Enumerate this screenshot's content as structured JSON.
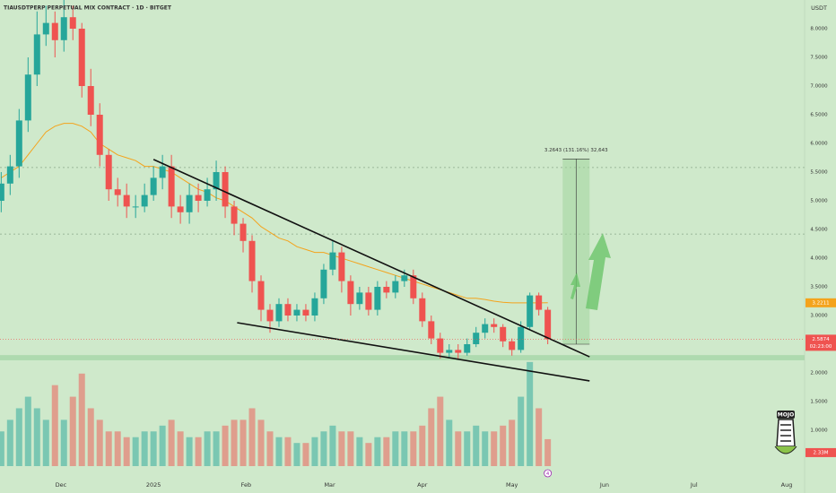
{
  "chart_data": {
    "type": "candlestick",
    "title": "TIAUSDTPERP PERPETUAL MIX CONTRACT · 1D · BITGET",
    "currency": "USDT",
    "x": [
      -20,
      -17,
      -14,
      -11,
      -8,
      -5,
      -2,
      1,
      4,
      7,
      10,
      13,
      16,
      19,
      22,
      25,
      28,
      31,
      34,
      37,
      40,
      43,
      46,
      49,
      52,
      55,
      58,
      61,
      64,
      67,
      70,
      73,
      76,
      79,
      82,
      85,
      88,
      91,
      94,
      97,
      100,
      103,
      106,
      109,
      112,
      115,
      118,
      121,
      124,
      127,
      130,
      133,
      136,
      139,
      142,
      145,
      148,
      151,
      154,
      157,
      160,
      163
    ],
    "open": [
      5.0,
      5.3,
      5.6,
      6.4,
      7.2,
      7.9,
      8.1,
      7.8,
      8.2,
      8.0,
      7.0,
      6.5,
      5.8,
      5.2,
      5.1,
      4.9,
      4.9,
      5.1,
      5.4,
      5.6,
      4.9,
      4.8,
      5.1,
      5.0,
      5.2,
      5.5,
      4.9,
      4.6,
      4.3,
      3.6,
      3.1,
      2.9,
      3.2,
      3.0,
      3.1,
      3.0,
      3.3,
      3.8,
      4.1,
      3.6,
      3.2,
      3.4,
      3.1,
      3.5,
      3.4,
      3.6,
      3.7,
      3.3,
      2.9,
      2.6,
      2.35,
      2.4,
      2.35,
      2.5,
      2.7,
      2.85,
      2.8,
      2.55,
      2.4,
      2.8,
      3.35,
      3.1
    ],
    "high": [
      5.5,
      5.8,
      6.6,
      7.5,
      8.3,
      8.4,
      8.3,
      8.5,
      8.4,
      8.1,
      7.3,
      6.7,
      5.9,
      5.4,
      5.3,
      5.1,
      5.3,
      5.6,
      5.8,
      5.8,
      5.1,
      5.3,
      5.3,
      5.4,
      5.7,
      5.6,
      5.0,
      4.7,
      4.4,
      3.7,
      3.2,
      3.3,
      3.3,
      3.2,
      3.2,
      3.4,
      3.9,
      4.3,
      4.2,
      3.7,
      3.5,
      3.5,
      3.6,
      3.6,
      3.7,
      3.8,
      3.8,
      3.4,
      3.0,
      2.7,
      2.5,
      2.5,
      2.6,
      2.8,
      2.95,
      2.95,
      2.85,
      2.6,
      2.9,
      3.4,
      3.4,
      3.15
    ],
    "low": [
      4.8,
      5.1,
      5.4,
      6.2,
      7.0,
      7.7,
      7.5,
      7.6,
      7.8,
      6.8,
      6.3,
      5.6,
      5.0,
      4.9,
      4.7,
      4.7,
      4.8,
      5.0,
      5.2,
      4.7,
      4.6,
      4.6,
      4.8,
      4.9,
      5.0,
      4.7,
      4.4,
      4.1,
      3.4,
      2.9,
      2.7,
      2.8,
      2.9,
      2.9,
      2.9,
      2.9,
      3.2,
      3.7,
      3.4,
      3.0,
      3.1,
      3.0,
      3.0,
      3.3,
      3.3,
      3.5,
      3.2,
      2.8,
      2.5,
      2.25,
      2.25,
      2.25,
      2.3,
      2.45,
      2.6,
      2.7,
      2.45,
      2.3,
      2.35,
      2.75,
      3.0,
      2.5
    ],
    "close": [
      5.3,
      5.6,
      6.4,
      7.2,
      7.9,
      8.1,
      7.8,
      8.2,
      8.0,
      7.0,
      6.5,
      5.8,
      5.2,
      5.1,
      4.9,
      4.9,
      5.1,
      5.4,
      5.6,
      4.9,
      4.8,
      5.1,
      5.0,
      5.2,
      5.5,
      4.9,
      4.6,
      4.3,
      3.6,
      3.1,
      2.9,
      3.2,
      3.0,
      3.1,
      3.0,
      3.3,
      3.8,
      4.1,
      3.6,
      3.2,
      3.4,
      3.1,
      3.5,
      3.4,
      3.6,
      3.7,
      3.3,
      2.9,
      2.6,
      2.35,
      2.4,
      2.35,
      2.5,
      2.7,
      2.85,
      2.8,
      2.55,
      2.4,
      2.8,
      3.35,
      3.1,
      2.5874
    ],
    "ma": [
      5.4,
      5.5,
      5.6,
      5.8,
      6.0,
      6.2,
      6.3,
      6.35,
      6.35,
      6.3,
      6.2,
      6.0,
      5.9,
      5.8,
      5.75,
      5.7,
      5.6,
      5.6,
      5.55,
      5.5,
      5.4,
      5.3,
      5.2,
      5.15,
      5.05,
      5.0,
      4.9,
      4.8,
      4.7,
      4.55,
      4.45,
      4.35,
      4.3,
      4.2,
      4.15,
      4.1,
      4.1,
      4.05,
      4.0,
      3.95,
      3.9,
      3.85,
      3.8,
      3.75,
      3.7,
      3.65,
      3.6,
      3.55,
      3.5,
      3.45,
      3.4,
      3.35,
      3.3,
      3.3,
      3.28,
      3.25,
      3.23,
      3.22,
      3.22,
      3.22,
      3.22,
      3.2211
    ],
    "ma_color": "#f4a31c",
    "ma_label": "3.2211",
    "volume": [
      3,
      4,
      5,
      6,
      5,
      4,
      7,
      4,
      6,
      8,
      5,
      4,
      3,
      3,
      2.5,
      2.5,
      3,
      3,
      3.5,
      4,
      3,
      2.5,
      2.5,
      3,
      3,
      3.5,
      4,
      4,
      5,
      4,
      3,
      2.5,
      2.5,
      2,
      2,
      2.5,
      3,
      3.5,
      3,
      3,
      2.5,
      2,
      2.5,
      2.5,
      3,
      3,
      3,
      3.5,
      5,
      6,
      4,
      3,
      3,
      3.5,
      3,
      3,
      3.5,
      4,
      6,
      9,
      5,
      2.33
    ],
    "volume_lim": [
      0,
      9.3
    ],
    "volume_label": "2.33M",
    "up_color": "#26a69a",
    "down_color": "#ef5350",
    "last_price_label": "2.5874",
    "countdown": "02:23:00",
    "xlim": [
      -20.4,
      249
    ],
    "ylim": [
      -0.094,
      8.5
    ],
    "xticks": [
      {
        "value": 0,
        "label": "Dec"
      },
      {
        "value": 31,
        "label": "2025"
      },
      {
        "value": 62,
        "label": "Feb"
      },
      {
        "value": 90,
        "label": "Mar"
      },
      {
        "value": 121,
        "label": "Apr"
      },
      {
        "value": 151,
        "label": "May"
      },
      {
        "value": 182,
        "label": "Jun"
      },
      {
        "value": 212,
        "label": "Jul"
      },
      {
        "value": 243,
        "label": "Aug"
      }
    ],
    "yticks": [
      {
        "value": 8,
        "label": "8.0000"
      },
      {
        "value": 7.5,
        "label": "7.5000"
      },
      {
        "value": 7,
        "label": "7.0000"
      },
      {
        "value": 6.5,
        "label": "6.5000"
      },
      {
        "value": 6,
        "label": "6.0000"
      },
      {
        "value": 5.5,
        "label": "5.5000"
      },
      {
        "value": 5,
        "label": "5.0000"
      },
      {
        "value": 4.5,
        "label": "4.5000"
      },
      {
        "value": 4,
        "label": "4.0000"
      },
      {
        "value": 3.5,
        "label": "3.5000"
      },
      {
        "value": 3,
        "label": "3.0000"
      },
      {
        "value": 2,
        "label": "2.0000"
      },
      {
        "value": 1.5,
        "label": "1.5000"
      },
      {
        "value": 1,
        "label": "1.0000"
      }
    ],
    "trendlines": [
      {
        "x": [
          31,
          177
        ],
        "y": [
          5.72,
          2.28
        ]
      },
      {
        "x": [
          59,
          177
        ],
        "y": [
          2.875,
          1.86
        ]
      }
    ],
    "levels": [
      5.58,
      4.42
    ],
    "support_zone": [
      2.22,
      2.31
    ],
    "measure": {
      "x": [
        168,
        177
      ],
      "y": [
        2.5,
        5.73
      ],
      "label": "3.2643 (131.16%) 32,643"
    },
    "event_marker": "4"
  }
}
